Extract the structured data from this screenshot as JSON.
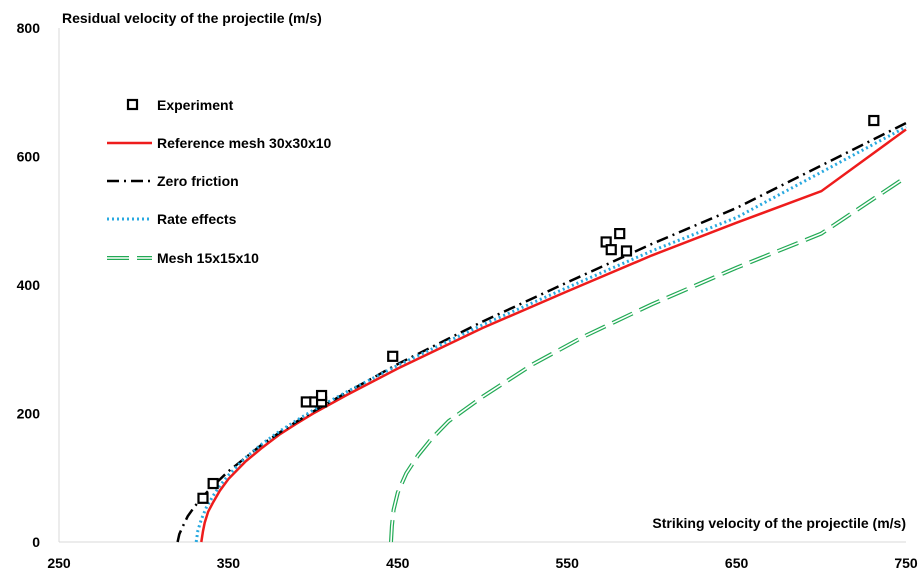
{
  "chart_data": {
    "type": "scatter",
    "ylabel": "Residual velocity of the projectile (m/s)",
    "xlabel": "Striking velocity of the projectile (m/s)",
    "xlim": [
      250,
      750
    ],
    "ylim": [
      0,
      800
    ],
    "xticks": [
      "250",
      "350",
      "450",
      "550",
      "650",
      "750"
    ],
    "yticks": [
      "0",
      "200",
      "400",
      "600",
      "800"
    ],
    "grid": false,
    "legend_position": "top-left",
    "series": [
      {
        "name": "Experiment",
        "kind": "points",
        "color": "#000000",
        "marker": "hollow-square",
        "x": [
          335,
          341,
          396,
          401,
          405,
          405,
          447,
          573,
          576,
          581,
          585,
          731
        ],
        "y": [
          68,
          91,
          218,
          218,
          218,
          228,
          289,
          467,
          455,
          480,
          453,
          656
        ]
      },
      {
        "name": "Reference mesh 30x30x10",
        "kind": "line",
        "color": "#ee1c1c",
        "dash": "solid",
        "x": [
          334,
          335,
          336,
          338,
          341,
          345,
          350,
          360,
          370,
          380,
          390,
          400,
          420,
          450,
          500,
          550,
          600,
          650,
          700,
          750
        ],
        "y": [
          0,
          17,
          30,
          47,
          62,
          80,
          98,
          125,
          147,
          167,
          184,
          200,
          229,
          270,
          333,
          390,
          446,
          497,
          546,
          642
        ]
      },
      {
        "name": "Zero friction",
        "kind": "line",
        "color": "#000000",
        "dash": "12,5,2,5",
        "x": [
          320,
          321,
          323,
          326,
          330,
          335,
          340,
          350,
          360,
          370,
          380,
          390,
          400,
          420,
          450,
          500,
          550,
          600,
          650,
          750
        ],
        "y": [
          0,
          12,
          24,
          40,
          55,
          71,
          85,
          110,
          131,
          152,
          170,
          187,
          203,
          233,
          277,
          343,
          404,
          464,
          520,
          652
        ]
      },
      {
        "name": "Rate effects",
        "kind": "line",
        "color": "#29a9e0",
        "dash": "2,3",
        "x": [
          331,
          332,
          334,
          337,
          341,
          345,
          350,
          360,
          370,
          380,
          390,
          400,
          420,
          450,
          500,
          550,
          600,
          650,
          750
        ],
        "y": [
          0,
          18,
          35,
          54,
          72,
          88,
          104,
          131,
          153,
          172,
          189,
          205,
          234,
          275,
          338,
          396,
          453,
          505,
          646
        ]
      },
      {
        "name": "Mesh 15x15x10",
        "kind": "line",
        "color": "#22aa55",
        "dash": "22,8",
        "outline": true,
        "x": [
          446,
          446.5,
          447.5,
          450,
          455,
          462,
          470,
          480,
          500,
          530,
          560,
          600,
          650,
          700,
          750
        ],
        "y": [
          0,
          25,
          50,
          77,
          107,
          135,
          161,
          188,
          226,
          277,
          320,
          370,
          427,
          480,
          568
        ]
      }
    ]
  }
}
